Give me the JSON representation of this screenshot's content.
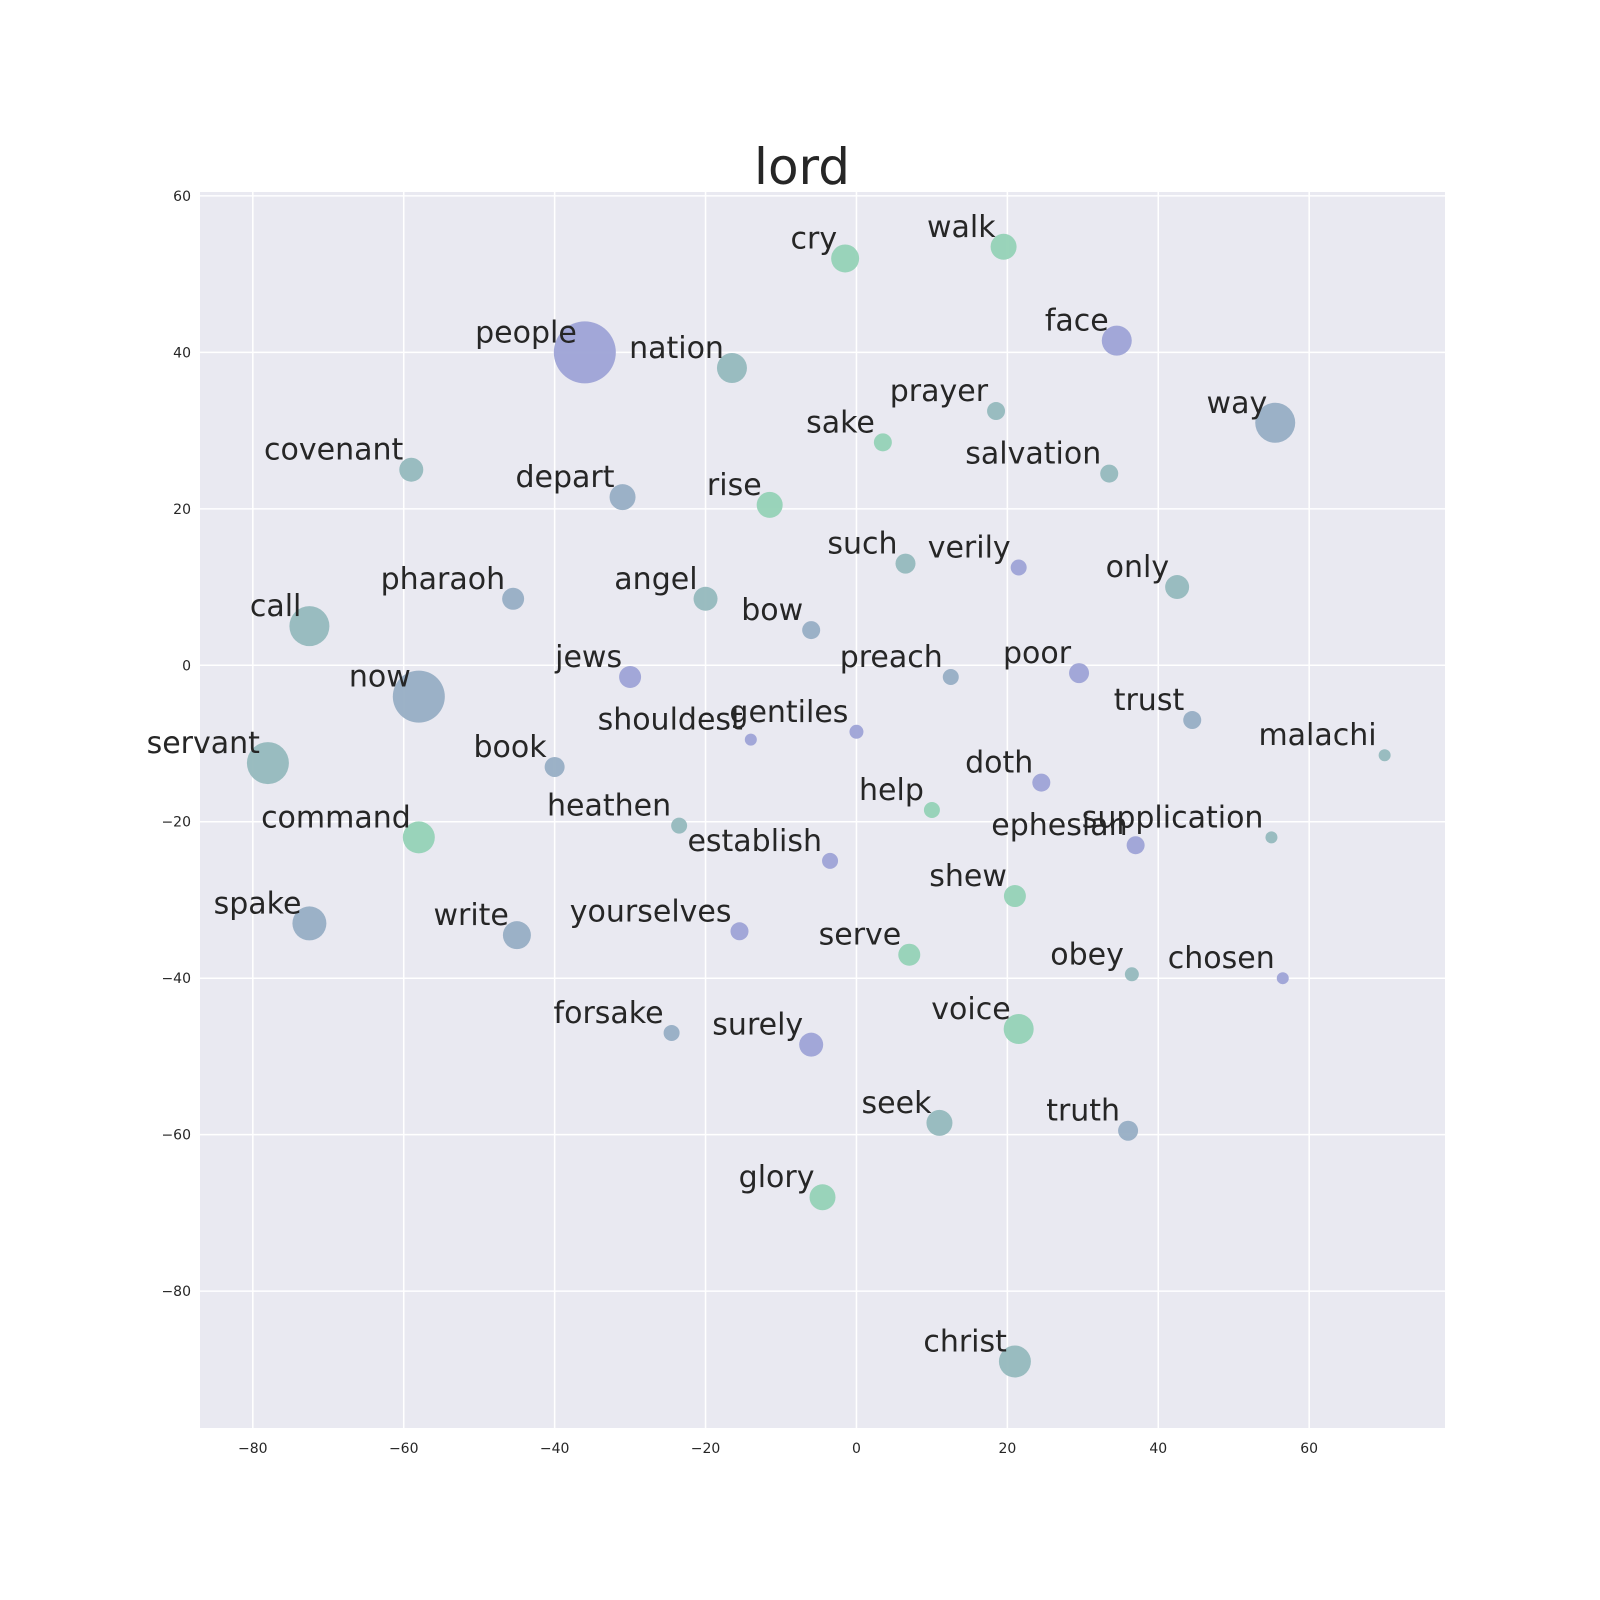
{
  "chart_data": {
    "type": "scatter",
    "title": "lord",
    "xlabel": "",
    "ylabel": "",
    "xlim": [
      -87,
      78
    ],
    "ylim": [
      -97.5,
      60.5
    ],
    "xticks": [
      -80,
      -60,
      -40,
      -20,
      0,
      20,
      40,
      60
    ],
    "yticks": [
      60,
      40,
      20,
      0,
      -20,
      -40,
      -60,
      -80
    ],
    "xtick_labels": [
      "−80",
      "−60",
      "−40",
      "−20",
      "0",
      "20",
      "40",
      "60"
    ],
    "ytick_labels": [
      "60",
      "40",
      "20",
      "0",
      "−20",
      "−40",
      "−60",
      "−80"
    ],
    "grid": true,
    "background": "#e9e9f1",
    "point_colors": {
      "blue": "#9ea3d6",
      "slate": "#97aec4",
      "teal": "#95b9bd",
      "green": "#95d2b6"
    },
    "points": [
      {
        "label": "cry",
        "x": -1.5,
        "y": 52.0,
        "size": 14,
        "color": "green"
      },
      {
        "label": "walk",
        "x": 19.5,
        "y": 53.5,
        "size": 13,
        "color": "green"
      },
      {
        "label": "face",
        "x": 34.5,
        "y": 41.5,
        "size": 15,
        "color": "blue"
      },
      {
        "label": "people",
        "x": -36.0,
        "y": 40.0,
        "size": 31,
        "color": "blue"
      },
      {
        "label": "nation",
        "x": -16.5,
        "y": 38.0,
        "size": 15,
        "color": "teal"
      },
      {
        "label": "prayer",
        "x": 18.5,
        "y": 32.5,
        "size": 9,
        "color": "teal"
      },
      {
        "label": "way",
        "x": 55.5,
        "y": 31.0,
        "size": 20,
        "color": "slate"
      },
      {
        "label": "sake",
        "x": 3.5,
        "y": 28.5,
        "size": 9,
        "color": "green"
      },
      {
        "label": "salvation",
        "x": 33.5,
        "y": 24.5,
        "size": 9,
        "color": "teal"
      },
      {
        "label": "covenant",
        "x": -59.0,
        "y": 25.0,
        "size": 12,
        "color": "teal"
      },
      {
        "label": "depart",
        "x": -31.0,
        "y": 21.5,
        "size": 13,
        "color": "slate"
      },
      {
        "label": "rise",
        "x": -11.5,
        "y": 20.5,
        "size": 13,
        "color": "green"
      },
      {
        "label": "such",
        "x": 6.5,
        "y": 13.0,
        "size": 10,
        "color": "teal"
      },
      {
        "label": "verily",
        "x": 21.5,
        "y": 12.5,
        "size": 8,
        "color": "blue"
      },
      {
        "label": "only",
        "x": 42.5,
        "y": 10.0,
        "size": 12,
        "color": "teal"
      },
      {
        "label": "pharaoh",
        "x": -45.5,
        "y": 8.5,
        "size": 11,
        "color": "slate"
      },
      {
        "label": "angel",
        "x": -20.0,
        "y": 8.5,
        "size": 12,
        "color": "teal"
      },
      {
        "label": "call",
        "x": -72.5,
        "y": 5.0,
        "size": 20,
        "color": "teal"
      },
      {
        "label": "bow",
        "x": -6.0,
        "y": 4.5,
        "size": 9,
        "color": "slate"
      },
      {
        "label": "jews",
        "x": -30.0,
        "y": -1.5,
        "size": 11,
        "color": "blue"
      },
      {
        "label": "preach",
        "x": 12.5,
        "y": -1.5,
        "size": 8,
        "color": "slate"
      },
      {
        "label": "poor",
        "x": 29.5,
        "y": -1.0,
        "size": 10,
        "color": "blue"
      },
      {
        "label": "now",
        "x": -58.0,
        "y": -4.0,
        "size": 26,
        "color": "slate"
      },
      {
        "label": "trust",
        "x": 44.5,
        "y": -7.0,
        "size": 9,
        "color": "slate"
      },
      {
        "label": "shouldest",
        "x": -14.0,
        "y": -9.5,
        "size": 6,
        "color": "blue"
      },
      {
        "label": "gentiles",
        "x": 0.0,
        "y": -8.5,
        "size": 7,
        "color": "blue"
      },
      {
        "label": "malachi",
        "x": 70.0,
        "y": -11.5,
        "size": 6,
        "color": "teal"
      },
      {
        "label": "servant",
        "x": -78.0,
        "y": -12.5,
        "size": 21,
        "color": "teal"
      },
      {
        "label": "book",
        "x": -40.0,
        "y": -13.0,
        "size": 10,
        "color": "slate"
      },
      {
        "label": "doth",
        "x": 24.5,
        "y": -15.0,
        "size": 9,
        "color": "blue"
      },
      {
        "label": "help",
        "x": 10.0,
        "y": -18.5,
        "size": 8,
        "color": "green"
      },
      {
        "label": "command",
        "x": -58.0,
        "y": -22.0,
        "size": 16,
        "color": "green"
      },
      {
        "label": "heathen",
        "x": -23.5,
        "y": -20.5,
        "size": 8,
        "color": "teal"
      },
      {
        "label": "supplication",
        "x": 55.0,
        "y": -22.0,
        "size": 6,
        "color": "teal"
      },
      {
        "label": "ephesian",
        "x": 37.0,
        "y": -23.0,
        "size": 9,
        "color": "blue"
      },
      {
        "label": "establish",
        "x": -3.5,
        "y": -25.0,
        "size": 8,
        "color": "blue"
      },
      {
        "label": "shew",
        "x": 21.0,
        "y": -29.5,
        "size": 11,
        "color": "green"
      },
      {
        "label": "spake",
        "x": -72.5,
        "y": -33.0,
        "size": 17,
        "color": "slate"
      },
      {
        "label": "write",
        "x": -45.0,
        "y": -34.5,
        "size": 14,
        "color": "slate"
      },
      {
        "label": "yourselves",
        "x": -15.5,
        "y": -34.0,
        "size": 9,
        "color": "blue"
      },
      {
        "label": "serve",
        "x": 7.0,
        "y": -37.0,
        "size": 11,
        "color": "green"
      },
      {
        "label": "obey",
        "x": 36.5,
        "y": -39.5,
        "size": 7,
        "color": "teal"
      },
      {
        "label": "chosen",
        "x": 56.5,
        "y": -40.0,
        "size": 6,
        "color": "blue"
      },
      {
        "label": "forsake",
        "x": -24.5,
        "y": -47.0,
        "size": 8,
        "color": "slate"
      },
      {
        "label": "surely",
        "x": -6.0,
        "y": -48.5,
        "size": 12,
        "color": "blue"
      },
      {
        "label": "voice",
        "x": 21.5,
        "y": -46.5,
        "size": 15,
        "color": "green"
      },
      {
        "label": "seek",
        "x": 11.0,
        "y": -58.5,
        "size": 13,
        "color": "teal"
      },
      {
        "label": "truth",
        "x": 36.0,
        "y": -59.5,
        "size": 10,
        "color": "slate"
      },
      {
        "label": "glory",
        "x": -4.5,
        "y": -68.0,
        "size": 13,
        "color": "green"
      },
      {
        "label": "christ",
        "x": 21.0,
        "y": -89.0,
        "size": 16,
        "color": "teal"
      }
    ]
  }
}
